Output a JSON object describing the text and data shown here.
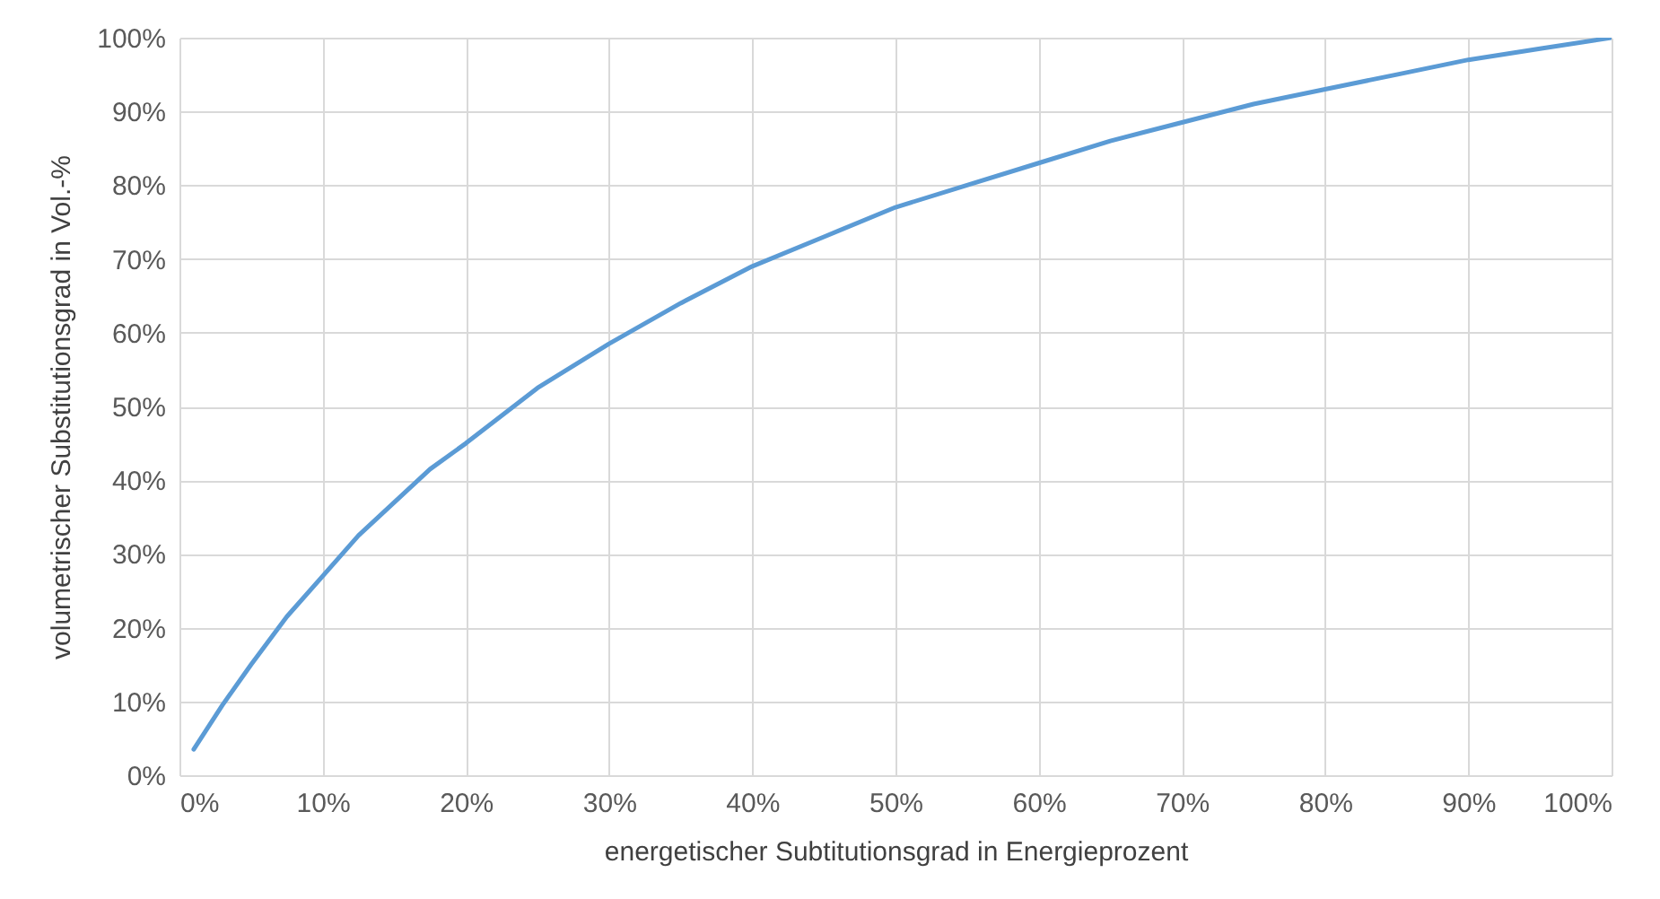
{
  "chart_data": {
    "type": "line",
    "xlabel": "energetischer Subtitutionsgrad in Energieprozent",
    "ylabel": "volumetrischer Substitutionsgrad in Vol.-%",
    "x": [
      1,
      3,
      5,
      7.5,
      10,
      12.5,
      15,
      17.5,
      20,
      25,
      30,
      35,
      40,
      45,
      50,
      55,
      60,
      65,
      70,
      75,
      80,
      85,
      90,
      95,
      100
    ],
    "series": [
      {
        "color": "#5b9bd5",
        "values": [
          3.5,
          9.5,
          15,
          21.5,
          27,
          32.5,
          37,
          41.5,
          45,
          52.5,
          58.5,
          64,
          69,
          73,
          77,
          80,
          83,
          86,
          88.5,
          91,
          93,
          95,
          97,
          98.5,
          100
        ]
      }
    ],
    "xlim": [
      0,
      100
    ],
    "ylim": [
      0,
      100
    ],
    "xticks": [
      {
        "value": 0,
        "label": "0%"
      },
      {
        "value": 10,
        "label": "10%"
      },
      {
        "value": 20,
        "label": "20%"
      },
      {
        "value": 30,
        "label": "30%"
      },
      {
        "value": 40,
        "label": "40%"
      },
      {
        "value": 50,
        "label": "50%"
      },
      {
        "value": 60,
        "label": "60%"
      },
      {
        "value": 70,
        "label": "70%"
      },
      {
        "value": 80,
        "label": "80%"
      },
      {
        "value": 90,
        "label": "90%"
      },
      {
        "value": 100,
        "label": "100%"
      }
    ],
    "yticks": [
      {
        "value": 0,
        "label": "0%"
      },
      {
        "value": 10,
        "label": "10%"
      },
      {
        "value": 20,
        "label": "20%"
      },
      {
        "value": 30,
        "label": "30%"
      },
      {
        "value": 40,
        "label": "40%"
      },
      {
        "value": 50,
        "label": "50%"
      },
      {
        "value": 60,
        "label": "60%"
      },
      {
        "value": 70,
        "label": "70%"
      },
      {
        "value": 80,
        "label": "80%"
      },
      {
        "value": 90,
        "label": "90%"
      },
      {
        "value": 100,
        "label": "100%"
      }
    ],
    "grid": true,
    "marker": "none",
    "line_style": "solid"
  }
}
